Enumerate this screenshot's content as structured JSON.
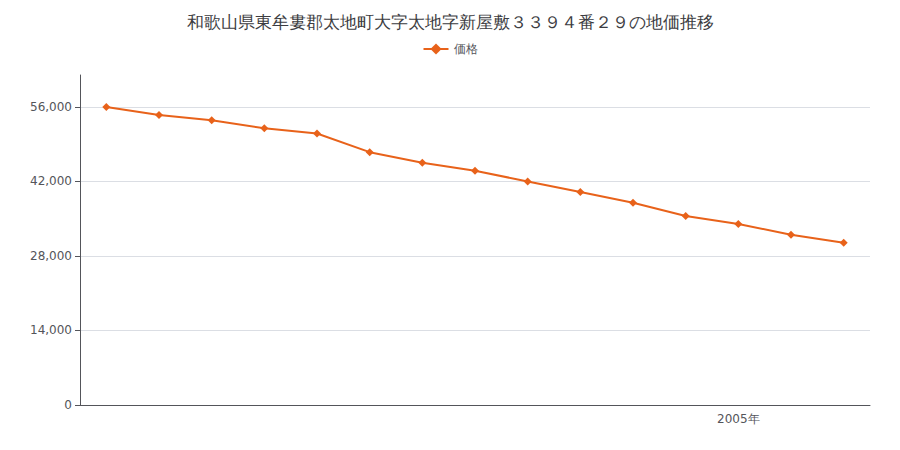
{
  "chart_data": {
    "type": "line",
    "title": "和歌山県東牟婁郡太地町大字太地字新屋敷３３９４番２９の地価推移",
    "categories": [
      null,
      null,
      null,
      null,
      null,
      null,
      null,
      null,
      null,
      null,
      null,
      null,
      "2005年",
      null,
      null
    ],
    "series": [
      {
        "name": "価格",
        "color": "#e8621a",
        "marker": "diamond",
        "values": [
          56000,
          54500,
          53500,
          52000,
          51000,
          47500,
          45500,
          44000,
          42000,
          40000,
          38000,
          35500,
          34000,
          32000,
          30500
        ]
      }
    ],
    "ylim": [
      0,
      62000
    ],
    "yticks": [
      0,
      {
        "value": 14000,
        "label": "14,000"
      },
      {
        "value": 28000,
        "label": "28,000"
      },
      {
        "value": 42000,
        "label": "42,000"
      },
      {
        "value": 56000,
        "label": "56,000"
      }
    ],
    "grid": true,
    "legend": "top"
  }
}
